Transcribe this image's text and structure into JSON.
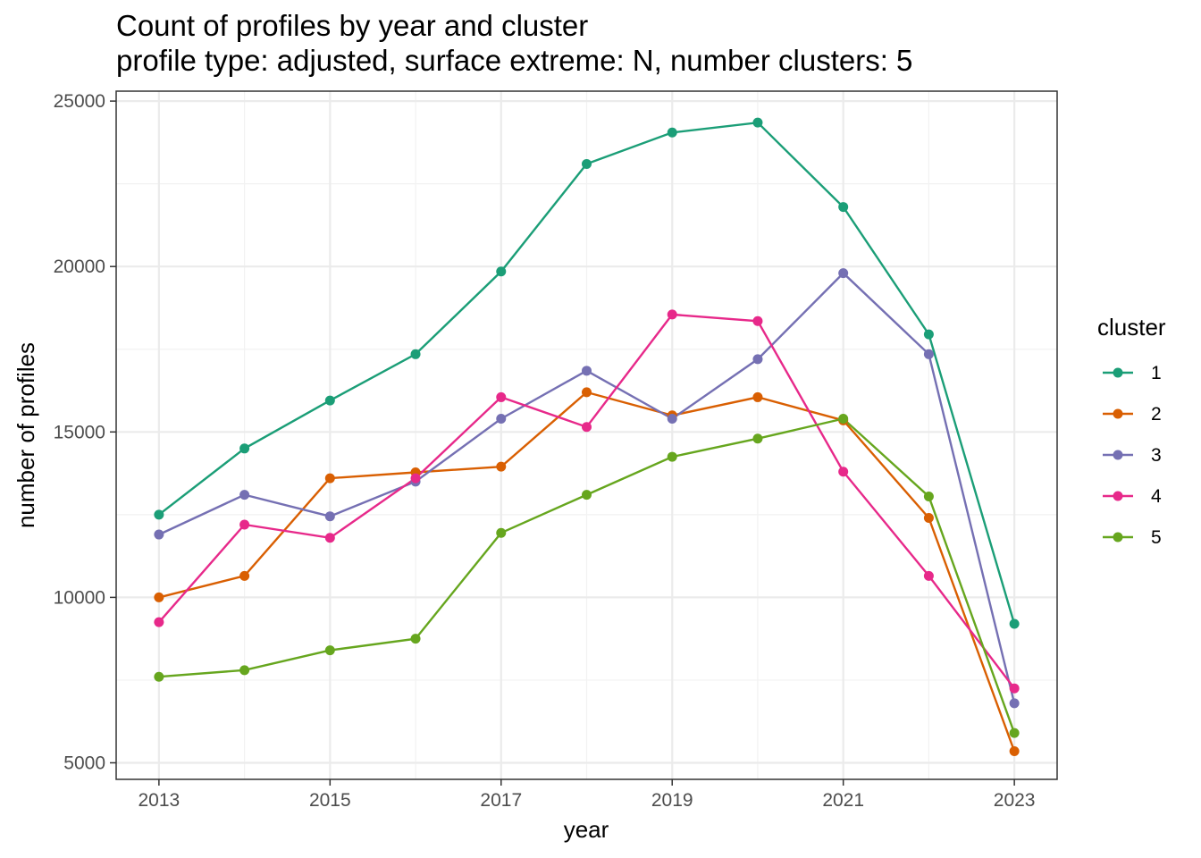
{
  "chart_data": {
    "type": "line",
    "title": "Count of profiles by year and cluster",
    "subtitle": "profile type: adjusted, surface extreme: N, number clusters: 5",
    "xlabel": "year",
    "ylabel": "number of profiles",
    "xlim": [
      2012.5,
      2023.5
    ],
    "ylim": [
      4500,
      25300
    ],
    "x": [
      2013,
      2014,
      2015,
      2016,
      2017,
      2018,
      2019,
      2020,
      2021,
      2022,
      2023
    ],
    "xticks": [
      2013,
      2015,
      2017,
      2019,
      2021,
      2023
    ],
    "xtick_labels": [
      "2013",
      "2015",
      "2017",
      "2019",
      "2021",
      "2023"
    ],
    "yticks": [
      5000,
      10000,
      15000,
      20000,
      25000
    ],
    "ytick_labels": [
      "5000",
      "10000",
      "15000",
      "20000",
      "25000"
    ],
    "grid": true,
    "legend": {
      "title": "cluster",
      "position": "right"
    },
    "series": [
      {
        "name": "1",
        "color": "#1b9e77",
        "values": [
          12500,
          14500,
          15950,
          17350,
          19850,
          23100,
          24050,
          24350,
          21800,
          17950,
          9200
        ]
      },
      {
        "name": "2",
        "color": "#d95f02",
        "values": [
          10000,
          10650,
          13600,
          13780,
          13950,
          16200,
          15500,
          16050,
          15350,
          12400,
          5350
        ]
      },
      {
        "name": "3",
        "color": "#7570b3",
        "values": [
          11900,
          13100,
          12450,
          13500,
          15400,
          16850,
          15400,
          17200,
          19800,
          17350,
          6800
        ]
      },
      {
        "name": "4",
        "color": "#e7298a",
        "values": [
          9250,
          12200,
          11800,
          13600,
          16050,
          15150,
          18550,
          18350,
          13800,
          10650,
          7250
        ]
      },
      {
        "name": "5",
        "color": "#66a61e",
        "values": [
          7600,
          7800,
          8400,
          8750,
          11950,
          13100,
          14250,
          14800,
          15400,
          13050,
          5900
        ]
      }
    ]
  }
}
